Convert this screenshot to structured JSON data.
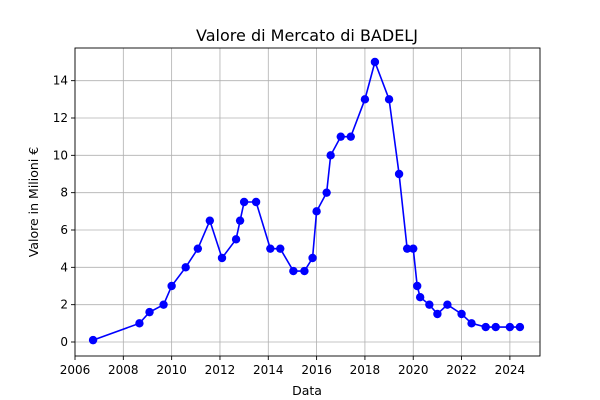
{
  "chart_data": {
    "type": "line",
    "title": "Valore di Mercato di BADELJ",
    "xlabel": "Data",
    "ylabel": "Valore in Milioni €",
    "x_axis_type": "date",
    "xlim": [
      "2006-01-01",
      "2025-04-01"
    ],
    "ylim": [
      -0.75,
      15.75
    ],
    "x_ticks": [
      "2006",
      "2008",
      "2010",
      "2012",
      "2014",
      "2016",
      "2018",
      "2020",
      "2022",
      "2024"
    ],
    "y_ticks": [
      0,
      2,
      4,
      6,
      8,
      10,
      12,
      14
    ],
    "grid": true,
    "color": "#0000ff",
    "marker": "circle",
    "series": [
      {
        "points": [
          {
            "x": "2006-10-01",
            "y": 0.1
          },
          {
            "x": "2008-09-01",
            "y": 1.0
          },
          {
            "x": "2009-02-01",
            "y": 1.6
          },
          {
            "x": "2009-09-01",
            "y": 2.0
          },
          {
            "x": "2010-01-01",
            "y": 3.0
          },
          {
            "x": "2010-08-01",
            "y": 4.0
          },
          {
            "x": "2011-02-01",
            "y": 5.0
          },
          {
            "x": "2011-08-01",
            "y": 6.5
          },
          {
            "x": "2012-02-01",
            "y": 4.5
          },
          {
            "x": "2012-09-01",
            "y": 5.5
          },
          {
            "x": "2012-11-01",
            "y": 6.5
          },
          {
            "x": "2013-01-01",
            "y": 7.5
          },
          {
            "x": "2013-07-01",
            "y": 7.5
          },
          {
            "x": "2014-02-01",
            "y": 5.0
          },
          {
            "x": "2014-07-01",
            "y": 5.0
          },
          {
            "x": "2015-01-15",
            "y": 3.8
          },
          {
            "x": "2015-07-01",
            "y": 3.8
          },
          {
            "x": "2015-11-01",
            "y": 4.5
          },
          {
            "x": "2016-01-01",
            "y": 7.0
          },
          {
            "x": "2016-06-01",
            "y": 8.0
          },
          {
            "x": "2016-08-01",
            "y": 10.0
          },
          {
            "x": "2017-01-01",
            "y": 11.0
          },
          {
            "x": "2017-06-01",
            "y": 11.0
          },
          {
            "x": "2018-01-01",
            "y": 13.0
          },
          {
            "x": "2018-06-01",
            "y": 15.0
          },
          {
            "x": "2019-01-01",
            "y": 13.0
          },
          {
            "x": "2019-06-01",
            "y": 9.0
          },
          {
            "x": "2019-10-01",
            "y": 5.0
          },
          {
            "x": "2020-01-01",
            "y": 5.0
          },
          {
            "x": "2020-03-01",
            "y": 3.0
          },
          {
            "x": "2020-04-15",
            "y": 2.4
          },
          {
            "x": "2020-09-01",
            "y": 2.0
          },
          {
            "x": "2021-01-01",
            "y": 1.5
          },
          {
            "x": "2021-06-01",
            "y": 2.0
          },
          {
            "x": "2022-01-01",
            "y": 1.5
          },
          {
            "x": "2022-06-01",
            "y": 1.0
          },
          {
            "x": "2023-01-01",
            "y": 0.8
          },
          {
            "x": "2023-06-01",
            "y": 0.8
          },
          {
            "x": "2024-01-01",
            "y": 0.8
          },
          {
            "x": "2024-06-01",
            "y": 0.8
          }
        ]
      }
    ]
  }
}
